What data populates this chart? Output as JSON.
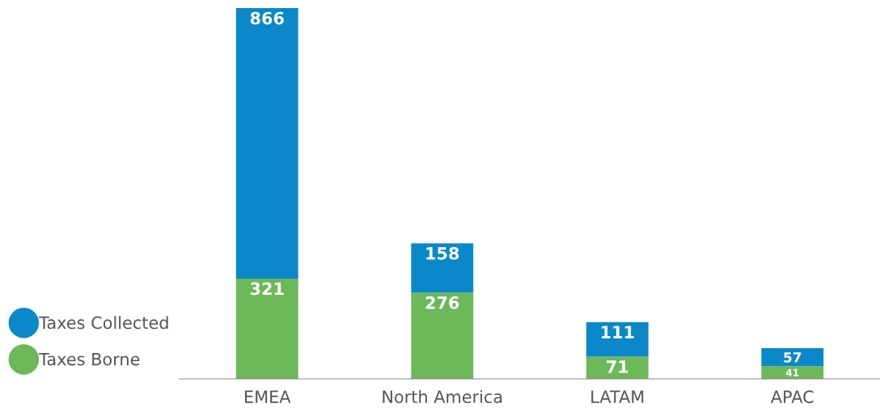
{
  "chart_data": {
    "type": "bar",
    "stacked": true,
    "categories": [
      "EMEA",
      "North America",
      "LATAM",
      "APAC"
    ],
    "series": [
      {
        "name": "Taxes Borne",
        "color": "#6db858",
        "values": [
          321,
          276,
          71,
          41
        ]
      },
      {
        "name": "Taxes Collected",
        "color": "#0a88ca",
        "values": [
          866,
          158,
          111,
          57
        ]
      }
    ],
    "data_labels": true,
    "legend": "left",
    "grid": false
  }
}
